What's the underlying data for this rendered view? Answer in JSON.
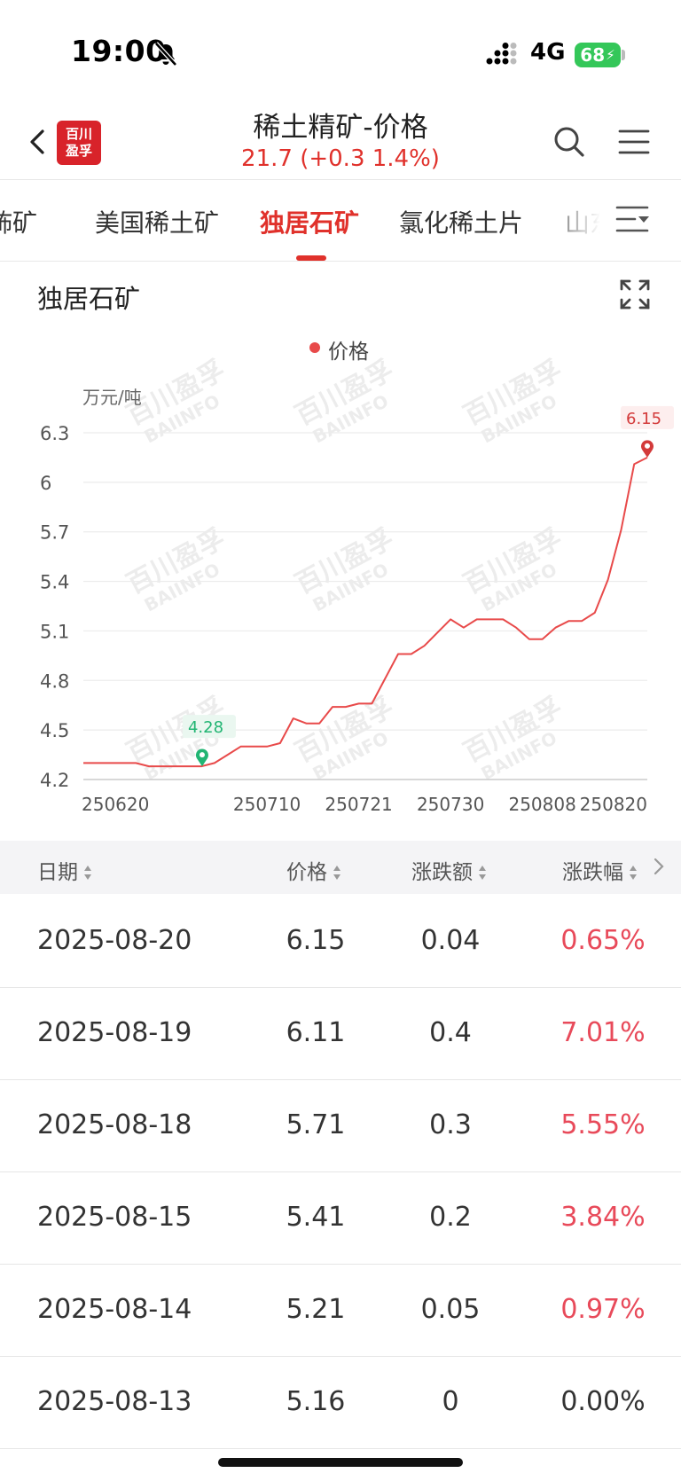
{
  "status_bar": {
    "time": "19:00",
    "network": "4G",
    "battery": "68"
  },
  "header": {
    "logo_line1": "百川",
    "logo_line2": "盈孚",
    "title": "稀土精矿-价格",
    "subtitle": "21.7 (+0.3  1.4%)"
  },
  "tabs": [
    {
      "label": "钸矿"
    },
    {
      "label": "美国稀土矿"
    },
    {
      "label": "独居石矿",
      "active": true
    },
    {
      "label": "氯化稀土片"
    },
    {
      "label": "山东"
    }
  ],
  "chart_card": {
    "title": "独居石矿",
    "legend": "价格",
    "unit": "万元/吨",
    "watermark_cn": "百川盈孚",
    "watermark_en": "BAIINFO"
  },
  "chart_data": {
    "type": "line",
    "ylabel": "万元/吨",
    "ylim": [
      4.2,
      6.3
    ],
    "yticks": [
      "6.3",
      "6",
      "5.7",
      "5.4",
      "5.1",
      "4.8",
      "4.5",
      "4.2"
    ],
    "xticks": [
      "250620",
      "250710",
      "250721",
      "250730",
      "250808",
      "250820"
    ],
    "series": [
      {
        "name": "价格",
        "color": "#e84a4a",
        "values": [
          4.3,
          4.3,
          4.3,
          4.3,
          4.3,
          4.28,
          4.28,
          4.28,
          4.28,
          4.28,
          4.3,
          4.35,
          4.4,
          4.4,
          4.4,
          4.42,
          4.57,
          4.54,
          4.54,
          4.64,
          4.64,
          4.66,
          4.66,
          4.81,
          4.96,
          4.96,
          5.01,
          5.09,
          5.17,
          5.12,
          5.17,
          5.17,
          5.17,
          5.12,
          5.05,
          5.05,
          5.12,
          5.16,
          5.16,
          5.21,
          5.41,
          5.71,
          6.11,
          6.15
        ]
      }
    ],
    "min_marker": {
      "label": "4.28",
      "value": 4.28
    },
    "max_marker": {
      "label": "6.15",
      "value": 6.15
    }
  },
  "table": {
    "headers": [
      "日期",
      "价格",
      "涨跌额",
      "涨跌幅"
    ],
    "rows": [
      {
        "date": "2025-08-20",
        "price": "6.15",
        "change": "0.04",
        "pct": "0.65%"
      },
      {
        "date": "2025-08-19",
        "price": "6.11",
        "change": "0.4",
        "pct": "7.01%"
      },
      {
        "date": "2025-08-18",
        "price": "5.71",
        "change": "0.3",
        "pct": "5.55%"
      },
      {
        "date": "2025-08-15",
        "price": "5.41",
        "change": "0.2",
        "pct": "3.84%"
      },
      {
        "date": "2025-08-14",
        "price": "5.21",
        "change": "0.05",
        "pct": "0.97%"
      },
      {
        "date": "2025-08-13",
        "price": "5.16",
        "change": "0",
        "pct": "0.00%"
      }
    ]
  },
  "colors": {
    "accent": "#e0312b",
    "rise": "#e84a5a",
    "flat": "#333333",
    "min_marker": "#22b573"
  }
}
